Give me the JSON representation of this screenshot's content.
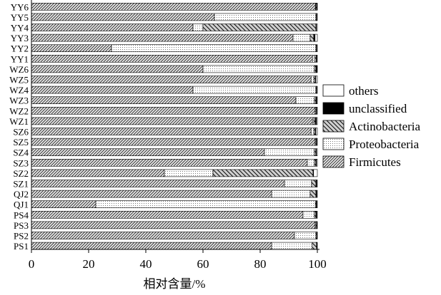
{
  "chart_data": {
    "type": "bar",
    "orientation": "horizontal",
    "stacked": true,
    "title": "",
    "xlabel": "相对含量/%",
    "ylabel": "",
    "xlim": [
      0,
      100
    ],
    "xticks": [
      0,
      20,
      40,
      60,
      80,
      100
    ],
    "grid": false,
    "legend_position": "right",
    "categories": [
      "YY6",
      "YY5",
      "YY4",
      "YY3",
      "YY2",
      "YY1",
      "WZ6",
      "WZ5",
      "WZ4",
      "WZ3",
      "WZ2",
      "WZ1",
      "SZ6",
      "SZ5",
      "SZ4",
      "SZ3",
      "SZ2",
      "SZ1",
      "QJ2",
      "QJ1",
      "PS4",
      "PS3",
      "PS2",
      "PS1"
    ],
    "series": [
      {
        "name": "Firmicutes",
        "pattern": "diagonal-fine",
        "values": [
          99.3,
          64,
          56.5,
          91.5,
          28,
          98.3,
          60,
          97.8,
          56.5,
          92.5,
          99.2,
          98.3,
          97.8,
          99.2,
          81.5,
          96.5,
          46.5,
          88.5,
          84,
          22.5,
          95,
          99.2,
          92,
          84
        ]
      },
      {
        "name": "Proteobacteria",
        "pattern": "dotted",
        "values": [
          0.2,
          35.5,
          3.5,
          6,
          71.5,
          0.8,
          39,
          1,
          43,
          6.5,
          0.3,
          0.5,
          1,
          0.3,
          17.5,
          2.5,
          17,
          9.5,
          13.5,
          76.8,
          4,
          0.3,
          7.5,
          14.2
        ]
      },
      {
        "name": "Actinobacteria",
        "pattern": "diagonal-coarse",
        "values": [
          0.3,
          0.2,
          39.5,
          1.2,
          0.2,
          0.5,
          0.5,
          0.5,
          0.2,
          0.5,
          0.2,
          0.5,
          0.5,
          0.2,
          0.5,
          0.5,
          35,
          1.5,
          2,
          0.3,
          0.5,
          0.3,
          0.3,
          1.5
        ]
      },
      {
        "name": "unclassified",
        "pattern": "solid-black",
        "values": [
          0.2,
          0.1,
          0.2,
          0.5,
          0.1,
          0.2,
          0.5,
          0.2,
          0.1,
          0.3,
          0.1,
          0.4,
          0.2,
          0.1,
          0.2,
          0.2,
          0.2,
          0.3,
          0.3,
          0.2,
          0.3,
          0.1,
          0.1,
          0.2
        ]
      },
      {
        "name": "others",
        "pattern": "white",
        "values": [
          0,
          0.2,
          0.3,
          0.8,
          0.2,
          0.2,
          0,
          0.5,
          0.2,
          0.2,
          0.2,
          0.3,
          0.5,
          0.2,
          0.3,
          0.3,
          1.3,
          0.2,
          0.2,
          0.2,
          0.2,
          0.1,
          0.1,
          0.1
        ]
      }
    ],
    "legend_order": [
      "others",
      "unclassified",
      "Actinobacteria",
      "Proteobacteria",
      "Firmicutes"
    ]
  }
}
